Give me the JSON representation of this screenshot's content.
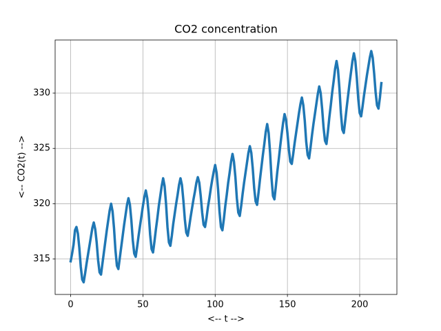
{
  "chart_data": {
    "type": "line",
    "title": "CO2 concentration",
    "x_label": "<-- t -->",
    "y_label": "<-- CO2(t)  -->",
    "xlim": [
      -10.75,
      225.75
    ],
    "ylim": [
      311.8,
      334.8
    ],
    "xticks": [
      0,
      50,
      100,
      150,
      200
    ],
    "yticks": [
      315,
      320,
      325,
      330
    ],
    "grid": true,
    "x": [
      0,
      1,
      2,
      3,
      4,
      5,
      6,
      7,
      8,
      9,
      10,
      11,
      12,
      13,
      14,
      15,
      16,
      17,
      18,
      19,
      20,
      21,
      22,
      23,
      24,
      25,
      26,
      27,
      28,
      29,
      30,
      31,
      32,
      33,
      34,
      35,
      36,
      37,
      38,
      39,
      40,
      41,
      42,
      43,
      44,
      45,
      46,
      47,
      48,
      49,
      50,
      51,
      52,
      53,
      54,
      55,
      56,
      57,
      58,
      59,
      60,
      61,
      62,
      63,
      64,
      65,
      66,
      67,
      68,
      69,
      70,
      71,
      72,
      73,
      74,
      75,
      76,
      77,
      78,
      79,
      80,
      81,
      82,
      83,
      84,
      85,
      86,
      87,
      88,
      89,
      90,
      91,
      92,
      93,
      94,
      95,
      96,
      97,
      98,
      99,
      100,
      101,
      102,
      103,
      104,
      105,
      106,
      107,
      108,
      109,
      110,
      111,
      112,
      113,
      114,
      115,
      116,
      117,
      118,
      119,
      120,
      121,
      122,
      123,
      124,
      125,
      126,
      127,
      128,
      129,
      130,
      131,
      132,
      133,
      134,
      135,
      136,
      137,
      138,
      139,
      140,
      141,
      142,
      143,
      144,
      145,
      146,
      147,
      148,
      149,
      150,
      151,
      152,
      153,
      154,
      155,
      156,
      157,
      158,
      159,
      160,
      161,
      162,
      163,
      164,
      165,
      166,
      167,
      168,
      169,
      170,
      171,
      172,
      173,
      174,
      175,
      176,
      177,
      178,
      179,
      180,
      181,
      182,
      183,
      184,
      185,
      186,
      187,
      188,
      189,
      190,
      191,
      192,
      193,
      194,
      195,
      196,
      197,
      198,
      199,
      200,
      201,
      202,
      203,
      204,
      205,
      206,
      207,
      208,
      209,
      210,
      211,
      212,
      213,
      214,
      215
    ],
    "series": [
      {
        "color": "#1f77b4",
        "values": [
          314.8,
          315.5,
          316.3,
          317.6,
          317.9,
          317.3,
          316.0,
          314.3,
          313.15,
          312.9,
          313.7,
          314.6,
          315.4,
          316.2,
          317.0,
          317.8,
          318.3,
          317.7,
          316.5,
          314.9,
          313.8,
          313.6,
          314.6,
          315.6,
          316.6,
          317.6,
          318.5,
          319.4,
          320.0,
          319.3,
          317.8,
          315.8,
          314.4,
          314.1,
          315.1,
          316.1,
          317.1,
          318.1,
          319.0,
          319.9,
          320.5,
          319.9,
          318.5,
          316.7,
          315.5,
          315.2,
          316.1,
          317.1,
          318.0,
          318.9,
          319.8,
          320.6,
          321.2,
          320.5,
          319.1,
          317.2,
          315.9,
          315.6,
          316.6,
          317.7,
          318.7,
          319.8,
          320.7,
          321.6,
          322.3,
          321.6,
          320.0,
          317.9,
          316.5,
          316.2,
          317.1,
          318.2,
          319.1,
          320.0,
          320.8,
          321.7,
          322.3,
          321.7,
          320.3,
          318.6,
          317.4,
          317.1,
          317.9,
          318.8,
          319.6,
          320.4,
          321.1,
          321.9,
          322.4,
          321.9,
          320.7,
          319.2,
          318.1,
          317.9,
          318.7,
          319.7,
          320.5,
          321.4,
          322.2,
          322.9,
          323.5,
          322.8,
          321.3,
          319.3,
          317.9,
          317.6,
          318.6,
          319.8,
          320.8,
          321.9,
          322.8,
          323.8,
          324.5,
          323.8,
          322.4,
          320.5,
          319.2,
          318.9,
          319.8,
          320.9,
          321.9,
          322.8,
          323.7,
          324.6,
          325.2,
          324.6,
          323.2,
          321.4,
          320.2,
          319.9,
          321.0,
          322.2,
          323.3,
          324.4,
          325.4,
          326.5,
          327.2,
          326.4,
          324.6,
          322.3,
          320.7,
          320.4,
          321.6,
          322.9,
          324.0,
          325.2,
          326.3,
          327.3,
          328.1,
          327.6,
          326.4,
          324.9,
          323.8,
          323.6,
          324.5,
          325.5,
          326.4,
          327.3,
          328.2,
          329.0,
          329.6,
          328.9,
          327.5,
          325.6,
          324.4,
          324.1,
          325.1,
          326.2,
          327.2,
          328.1,
          329.0,
          329.9,
          330.6,
          330.0,
          328.6,
          326.9,
          325.7,
          325.4,
          326.5,
          327.8,
          328.9,
          330.1,
          331.1,
          332.2,
          332.9,
          332.1,
          330.4,
          328.2,
          326.7,
          326.4,
          327.5,
          328.7,
          329.8,
          330.9,
          331.9,
          332.9,
          333.6,
          332.9,
          331.4,
          329.5,
          328.2,
          327.9,
          328.8,
          329.8,
          330.7,
          331.6,
          332.4,
          333.2,
          333.8,
          333.2,
          331.8,
          330.1,
          328.9,
          328.6,
          329.6,
          330.9
        ]
      }
    ]
  }
}
